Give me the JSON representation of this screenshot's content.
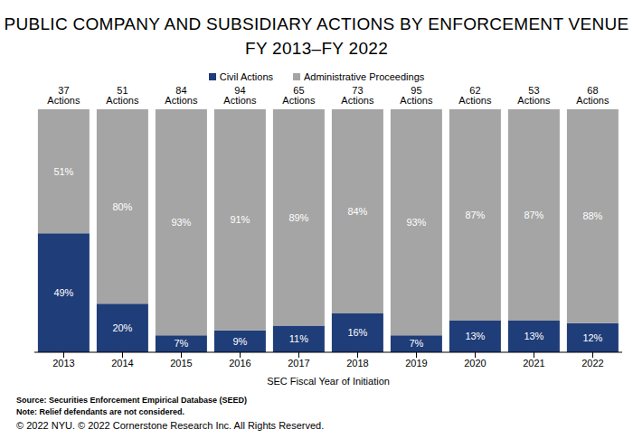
{
  "chart_data": {
    "type": "bar",
    "title": "PUBLIC COMPANY AND SUBSIDIARY ACTIONS BY ENFORCEMENT VENUE",
    "subtitle": "FY 2013–FY 2022",
    "x_label": "SEC Fiscal Year of Initiation",
    "categories": [
      "2013",
      "2014",
      "2015",
      "2016",
      "2017",
      "2018",
      "2019",
      "2020",
      "2021",
      "2022"
    ],
    "series": [
      {
        "name": "Civil Actions",
        "color": "#1f3d78",
        "values": [
          49,
          20,
          7,
          9,
          11,
          16,
          7,
          13,
          13,
          12
        ],
        "value_labels": [
          "49%",
          "20%",
          "7%",
          "9%",
          "11%",
          "16%",
          "7%",
          "13%",
          "13%",
          "12%"
        ]
      },
      {
        "name": "Administrative Proceedings",
        "color": "#a5a5a5",
        "values": [
          51,
          80,
          93,
          91,
          89,
          84,
          93,
          87,
          87,
          88
        ],
        "value_labels": [
          "51%",
          "80%",
          "93%",
          "91%",
          "89%",
          "84%",
          "93%",
          "87%",
          "87%",
          "88%"
        ]
      }
    ],
    "annotations": [
      "37 Actions",
      "51 Actions",
      "84 Actions",
      "94 Actions",
      "65 Actions",
      "73 Actions",
      "95 Actions",
      "62 Actions",
      "53 Actions",
      "68 Actions"
    ],
    "notes": [
      "Source: Securities Enforcement Empirical Database (SEED)",
      "Note: Relief defendants are not considered.",
      "© 2022 NYU. © 2022 Cornerstone Research Inc. All Rights Reserved."
    ],
    "ylim": [
      0,
      100
    ],
    "tick_labels": "x",
    "stacked": true,
    "data_labels": true,
    "legend": "top",
    "grid": false
  }
}
